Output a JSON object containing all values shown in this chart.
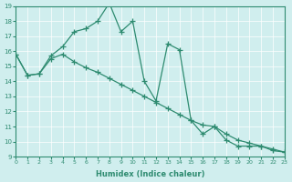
{
  "xlabel": "Humidex (Indice chaleur)",
  "ylabel": "",
  "xlim": [
    0,
    23
  ],
  "ylim": [
    9,
    19
  ],
  "xticks": [
    0,
    1,
    2,
    3,
    4,
    5,
    6,
    7,
    8,
    9,
    10,
    11,
    12,
    13,
    14,
    15,
    16,
    17,
    18,
    19,
    20,
    21,
    22,
    23
  ],
  "yticks": [
    9,
    10,
    11,
    12,
    13,
    14,
    15,
    16,
    17,
    18,
    19
  ],
  "bg_color": "#d0eeee",
  "line_color": "#2e8b70",
  "line1_x": [
    0,
    1,
    2,
    3,
    4,
    5,
    6,
    7,
    8,
    9,
    10,
    11,
    12,
    13,
    14,
    15,
    16,
    17,
    18,
    19,
    20,
    21,
    22,
    23
  ],
  "line1_y": [
    15.8,
    14.4,
    14.5,
    15.7,
    16.3,
    17.3,
    17.5,
    18.0,
    19.2,
    17.3,
    18.0,
    14.0,
    12.7,
    16.5,
    16.1,
    11.4,
    10.5,
    11.0,
    10.1,
    9.7,
    9.7,
    9.7,
    9.4,
    9.3
  ],
  "line2_x": [
    0,
    1,
    2,
    3,
    4,
    5,
    6,
    7,
    8,
    9,
    10,
    11,
    12,
    13,
    14,
    15,
    16,
    17,
    18,
    19,
    20,
    21,
    22,
    23
  ],
  "line2_y": [
    15.8,
    14.4,
    14.5,
    15.5,
    15.8,
    15.3,
    14.9,
    14.6,
    14.2,
    13.8,
    13.4,
    13.0,
    12.6,
    12.2,
    11.8,
    11.4,
    11.1,
    11.0,
    10.5,
    10.1,
    9.9,
    9.7,
    9.5,
    9.3
  ]
}
